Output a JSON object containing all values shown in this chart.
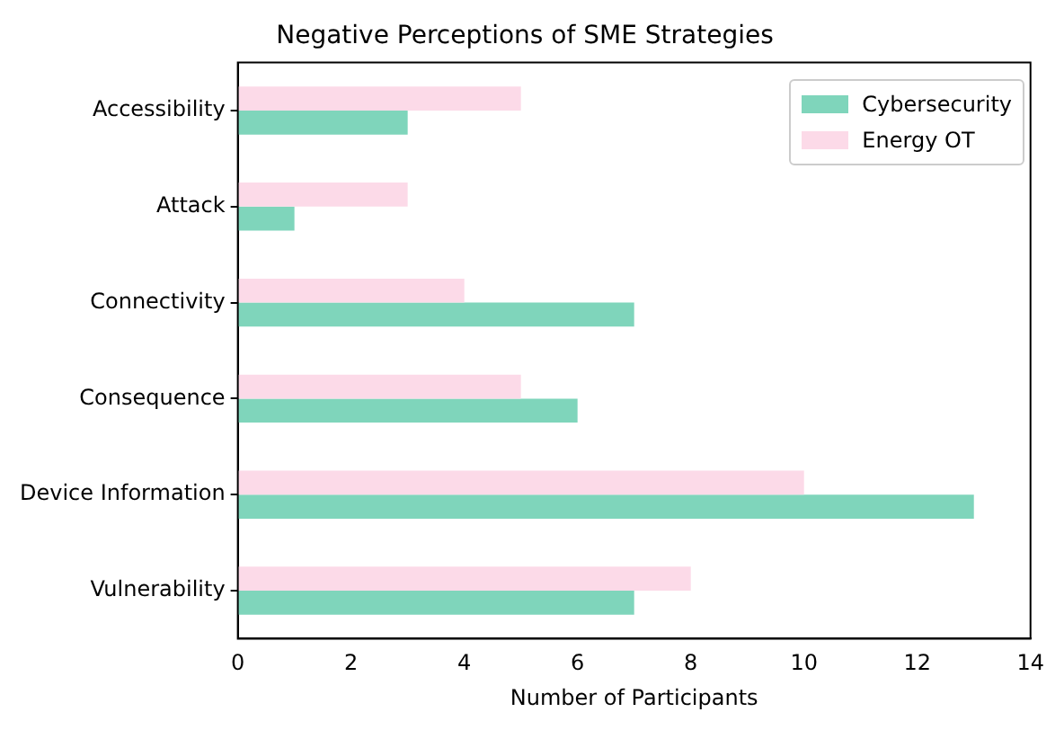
{
  "chart_data": {
    "type": "bar",
    "orientation": "horizontal",
    "title": "Negative Perceptions of SME Strategies",
    "xlabel": "Number of Participants",
    "categories": [
      "Accessibility",
      "Attack",
      "Connectivity",
      "Consequence",
      "Device Information",
      "Vulnerability"
    ],
    "series": [
      {
        "name": "Cybersecurity",
        "color": "#7fd5bb",
        "values": [
          3,
          1,
          7,
          6,
          13,
          7
        ]
      },
      {
        "name": "Energy OT",
        "color": "#fcdae8",
        "values": [
          5,
          3,
          4,
          5,
          10,
          8
        ]
      }
    ],
    "xlim": [
      0,
      14
    ],
    "xticks": [
      0,
      2,
      4,
      6,
      8,
      10,
      12,
      14
    ],
    "grid": false,
    "legend": "top right"
  }
}
